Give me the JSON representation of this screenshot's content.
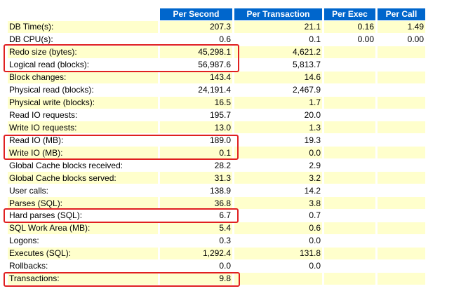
{
  "headers": [
    "",
    "Per Second",
    "Per Transaction",
    "Per Exec",
    "Per Call"
  ],
  "rows": [
    {
      "name": "DB Time(s):",
      "per_second": "207.3",
      "per_transaction": "21.1",
      "per_exec": "0.16",
      "per_call": "1.49"
    },
    {
      "name": "DB CPU(s):",
      "per_second": "0.6",
      "per_transaction": "0.1",
      "per_exec": "0.00",
      "per_call": "0.00"
    },
    {
      "name": "Redo size (bytes):",
      "per_second": "45,298.1",
      "per_transaction": "4,621.2",
      "per_exec": "",
      "per_call": ""
    },
    {
      "name": "Logical read (blocks):",
      "per_second": "56,987.6",
      "per_transaction": "5,813.7",
      "per_exec": "",
      "per_call": ""
    },
    {
      "name": "Block changes:",
      "per_second": "143.4",
      "per_transaction": "14.6",
      "per_exec": "",
      "per_call": ""
    },
    {
      "name": "Physical read (blocks):",
      "per_second": "24,191.4",
      "per_transaction": "2,467.9",
      "per_exec": "",
      "per_call": ""
    },
    {
      "name": "Physical write (blocks):",
      "per_second": "16.5",
      "per_transaction": "1.7",
      "per_exec": "",
      "per_call": ""
    },
    {
      "name": "Read IO requests:",
      "per_second": "195.7",
      "per_transaction": "20.0",
      "per_exec": "",
      "per_call": ""
    },
    {
      "name": "Write IO requests:",
      "per_second": "13.0",
      "per_transaction": "1.3",
      "per_exec": "",
      "per_call": ""
    },
    {
      "name": "Read IO (MB):",
      "per_second": "189.0",
      "per_transaction": "19.3",
      "per_exec": "",
      "per_call": ""
    },
    {
      "name": "Write IO (MB):",
      "per_second": "0.1",
      "per_transaction": "0.0",
      "per_exec": "",
      "per_call": ""
    },
    {
      "name": "Global Cache blocks received:",
      "per_second": "28.2",
      "per_transaction": "2.9",
      "per_exec": "",
      "per_call": ""
    },
    {
      "name": "Global Cache blocks served:",
      "per_second": "31.3",
      "per_transaction": "3.2",
      "per_exec": "",
      "per_call": ""
    },
    {
      "name": "User calls:",
      "per_second": "138.9",
      "per_transaction": "14.2",
      "per_exec": "",
      "per_call": ""
    },
    {
      "name": "Parses (SQL):",
      "per_second": "36.8",
      "per_transaction": "3.8",
      "per_exec": "",
      "per_call": ""
    },
    {
      "name": "Hard parses (SQL):",
      "per_second": "6.7",
      "per_transaction": "0.7",
      "per_exec": "",
      "per_call": ""
    },
    {
      "name": "SQL Work Area (MB):",
      "per_second": "5.4",
      "per_transaction": "0.6",
      "per_exec": "",
      "per_call": ""
    },
    {
      "name": "Logons:",
      "per_second": "0.3",
      "per_transaction": "0.0",
      "per_exec": "",
      "per_call": ""
    },
    {
      "name": "Executes (SQL):",
      "per_second": "1,292.4",
      "per_transaction": "131.8",
      "per_exec": "",
      "per_call": ""
    },
    {
      "name": "Rollbacks:",
      "per_second": "0.0",
      "per_transaction": "0.0",
      "per_exec": "",
      "per_call": ""
    },
    {
      "name": "Transactions:",
      "per_second": "9.8",
      "per_transaction": "",
      "per_exec": "",
      "per_call": ""
    }
  ],
  "highlight_color": "#e02020",
  "header_bg": "#0066cc",
  "row_alt_bg": "#ffffcc"
}
